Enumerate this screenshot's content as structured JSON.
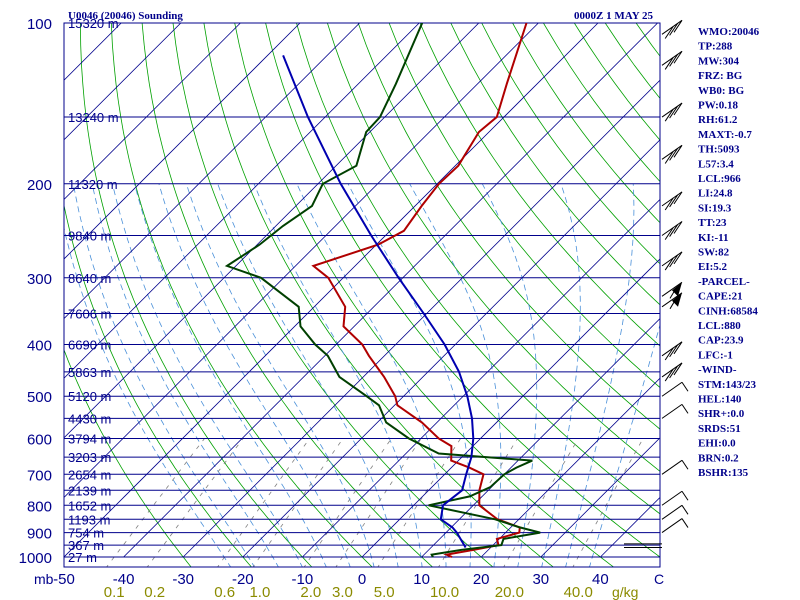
{
  "header": {
    "station_title": "U0046 (20046) Sounding",
    "time": "0000Z  1 MAY 25"
  },
  "indices": [
    "WMO:20046",
    "TP:288",
    "MW:304",
    "FRZ: BG",
    "WB0: BG",
    "PW:0.18",
    "RH:61.2",
    "MAXT:-0.7",
    "TH:5093",
    "L57:3.4",
    "LCL:966",
    "LI:24.8",
    "SI:19.3",
    "TT:23",
    "KI:-11",
    "SW:82",
    "EI:5.2",
    "-PARCEL-",
    "CAPE:21",
    "CINH:68584",
    "LCL:880",
    "CAP:23.9",
    "LFC:-1",
    "-WIND-",
    "STM:143/23",
    "HEL:140",
    "SHR+:0.0",
    "SRDS:51",
    "EHI:0.0",
    "BRN:0.2",
    "BSHR:135"
  ],
  "colors": {
    "temperature": "#b00000",
    "dewpoint": "#004000",
    "parcel": "#0000b0",
    "isobar": "#00008b",
    "isotherm": "#00008b",
    "dry_adiabat": "#00a000",
    "moist_adiabat": "#4a90d9",
    "mixing_ratio": "#808080",
    "labels": "#00008b",
    "mixing_labels": "#8b8b00"
  },
  "chart_data": {
    "type": "line",
    "title": "U0046 (20046) Sounding",
    "xlabel": "C",
    "ylabel": "mb",
    "xlim": [
      -50,
      50
    ],
    "ylim": [
      1000,
      100
    ],
    "pressure_levels": [
      100,
      200,
      300,
      400,
      500,
      600,
      700,
      800,
      900,
      1000
    ],
    "pressure_labels": [
      "100",
      "200",
      "300",
      "400",
      "500",
      "600",
      "700",
      "800",
      "900",
      "1000"
    ],
    "x_tick_labels": [
      "-50",
      "-40",
      "-30",
      "-20",
      "-10",
      "0",
      "10",
      "20",
      "30",
      "40"
    ],
    "x_ticks": [
      -50,
      -40,
      -30,
      -20,
      -10,
      0,
      10,
      20,
      30,
      40
    ],
    "mixing_ratio_labels": [
      "0.1",
      "0.2",
      "0.6",
      "1.0",
      "2.0",
      "3.0",
      "5.0",
      "10.0",
      "20.0",
      "40.0"
    ],
    "mixing_ratio_unit": "g/kg",
    "height_labels": [
      {
        "p": 100,
        "text": "15320 m"
      },
      {
        "p": 150,
        "text": "13240 m"
      },
      {
        "p": 200,
        "text": "11320 m"
      },
      {
        "p": 250,
        "text": "9840 m"
      },
      {
        "p": 300,
        "text": "8640 m"
      },
      {
        "p": 350,
        "text": "7606 m"
      },
      {
        "p": 400,
        "text": "6690 m"
      },
      {
        "p": 450,
        "text": "5863 m"
      },
      {
        "p": 500,
        "text": "5120 m"
      },
      {
        "p": 550,
        "text": "4430 m"
      },
      {
        "p": 600,
        "text": "3794 m"
      },
      {
        "p": 650,
        "text": "3203 m"
      },
      {
        "p": 700,
        "text": "2654 m"
      },
      {
        "p": 750,
        "text": "2139 m"
      },
      {
        "p": 800,
        "text": "1652 m"
      },
      {
        "p": 850,
        "text": "1193 m"
      },
      {
        "p": 900,
        "text": "754 m"
      },
      {
        "p": 950,
        "text": "367 m"
      },
      {
        "p": 1000,
        "text": "27 m"
      }
    ],
    "series": [
      {
        "key": "temperature",
        "points": [
          [
            1000,
            15.1
          ],
          [
            990,
            13.8
          ],
          [
            970,
            17.5
          ],
          [
            950,
            20.9
          ],
          [
            925,
            19.6
          ],
          [
            900,
            22.3
          ],
          [
            880,
            21.5
          ],
          [
            850,
            16.4
          ],
          [
            800,
            11.0
          ],
          [
            750,
            8.5
          ],
          [
            700,
            6.5
          ],
          [
            680,
            3.0
          ],
          [
            660,
            -1.2
          ],
          [
            620,
            -3.6
          ],
          [
            600,
            -7.0
          ],
          [
            560,
            -12.5
          ],
          [
            520,
            -19.5
          ],
          [
            500,
            -21.4
          ],
          [
            460,
            -26.5
          ],
          [
            420,
            -32.6
          ],
          [
            400,
            -35.6
          ],
          [
            370,
            -41.8
          ],
          [
            340,
            -44.8
          ],
          [
            300,
            -52.5
          ],
          [
            285,
            -57.0
          ],
          [
            260,
            -49.7
          ],
          [
            245,
            -47.7
          ],
          [
            220,
            -48.9
          ],
          [
            200,
            -49.7
          ],
          [
            185,
            -49.5
          ],
          [
            160,
            -51.7
          ],
          [
            150,
            -51.2
          ],
          [
            130,
            -55.1
          ],
          [
            100,
            -62.0
          ]
        ]
      },
      {
        "key": "dewpoint",
        "points": [
          [
            1000,
            11.9
          ],
          [
            990,
            11.3
          ],
          [
            970,
            15.5
          ],
          [
            950,
            21.4
          ],
          [
            925,
            20.7
          ],
          [
            900,
            25.8
          ],
          [
            880,
            21.5
          ],
          [
            850,
            16.0
          ],
          [
            800,
            2.5
          ],
          [
            770,
            7.9
          ],
          [
            740,
            9.8
          ],
          [
            700,
            10.0
          ],
          [
            680,
            10.9
          ],
          [
            660,
            12.4
          ],
          [
            640,
            -4.5
          ],
          [
            600,
            -12.0
          ],
          [
            560,
            -18.5
          ],
          [
            520,
            -22.6
          ],
          [
            500,
            -26.2
          ],
          [
            460,
            -34.0
          ],
          [
            420,
            -39.5
          ],
          [
            400,
            -43.5
          ],
          [
            370,
            -49.0
          ],
          [
            340,
            -52.6
          ],
          [
            300,
            -63.8
          ],
          [
            285,
            -71.5
          ],
          [
            260,
            -69.6
          ],
          [
            240,
            -68.8
          ],
          [
            220,
            -67.3
          ],
          [
            200,
            -69.2
          ],
          [
            185,
            -66.6
          ],
          [
            160,
            -70.6
          ],
          [
            150,
            -70.8
          ],
          [
            130,
            -73.7
          ],
          [
            100,
            -79.5
          ]
        ]
      },
      {
        "key": "parcel",
        "points": [
          [
            960,
            15.8
          ],
          [
            900,
            11.8
          ],
          [
            880,
            10.2
          ],
          [
            850,
            6.9
          ],
          [
            800,
            4.9
          ],
          [
            750,
            5.6
          ],
          [
            700,
            3.6
          ],
          [
            650,
            1.6
          ],
          [
            600,
            -1.2
          ],
          [
            550,
            -4.8
          ],
          [
            500,
            -9.3
          ],
          [
            450,
            -14.8
          ],
          [
            400,
            -21.8
          ],
          [
            350,
            -30.5
          ],
          [
            300,
            -40.7
          ],
          [
            250,
            -52.4
          ],
          [
            200,
            -66.2
          ],
          [
            150,
            -82.9
          ],
          [
            115,
            -97.4
          ]
        ]
      }
    ],
    "wind_barbs": [
      {
        "p": 960,
        "kind": "calm"
      },
      {
        "p": 945,
        "kind": "calm"
      },
      {
        "p": 900,
        "kind": "light"
      },
      {
        "p": 850,
        "kind": "light"
      },
      {
        "p": 800,
        "kind": "light"
      },
      {
        "p": 700,
        "kind": "light"
      },
      {
        "p": 550,
        "kind": "light"
      },
      {
        "p": 500,
        "kind": "light"
      },
      {
        "p": 460,
        "kind": "strong"
      },
      {
        "p": 420,
        "kind": "strong"
      },
      {
        "p": 340,
        "kind": "pennant"
      },
      {
        "p": 325,
        "kind": "pennant"
      },
      {
        "p": 285,
        "kind": "strong"
      },
      {
        "p": 250,
        "kind": "strong"
      },
      {
        "p": 220,
        "kind": "strong"
      },
      {
        "p": 180,
        "kind": "strong"
      },
      {
        "p": 150,
        "kind": "strong"
      },
      {
        "p": 120,
        "kind": "strong"
      },
      {
        "p": 105,
        "kind": "strong"
      }
    ]
  }
}
